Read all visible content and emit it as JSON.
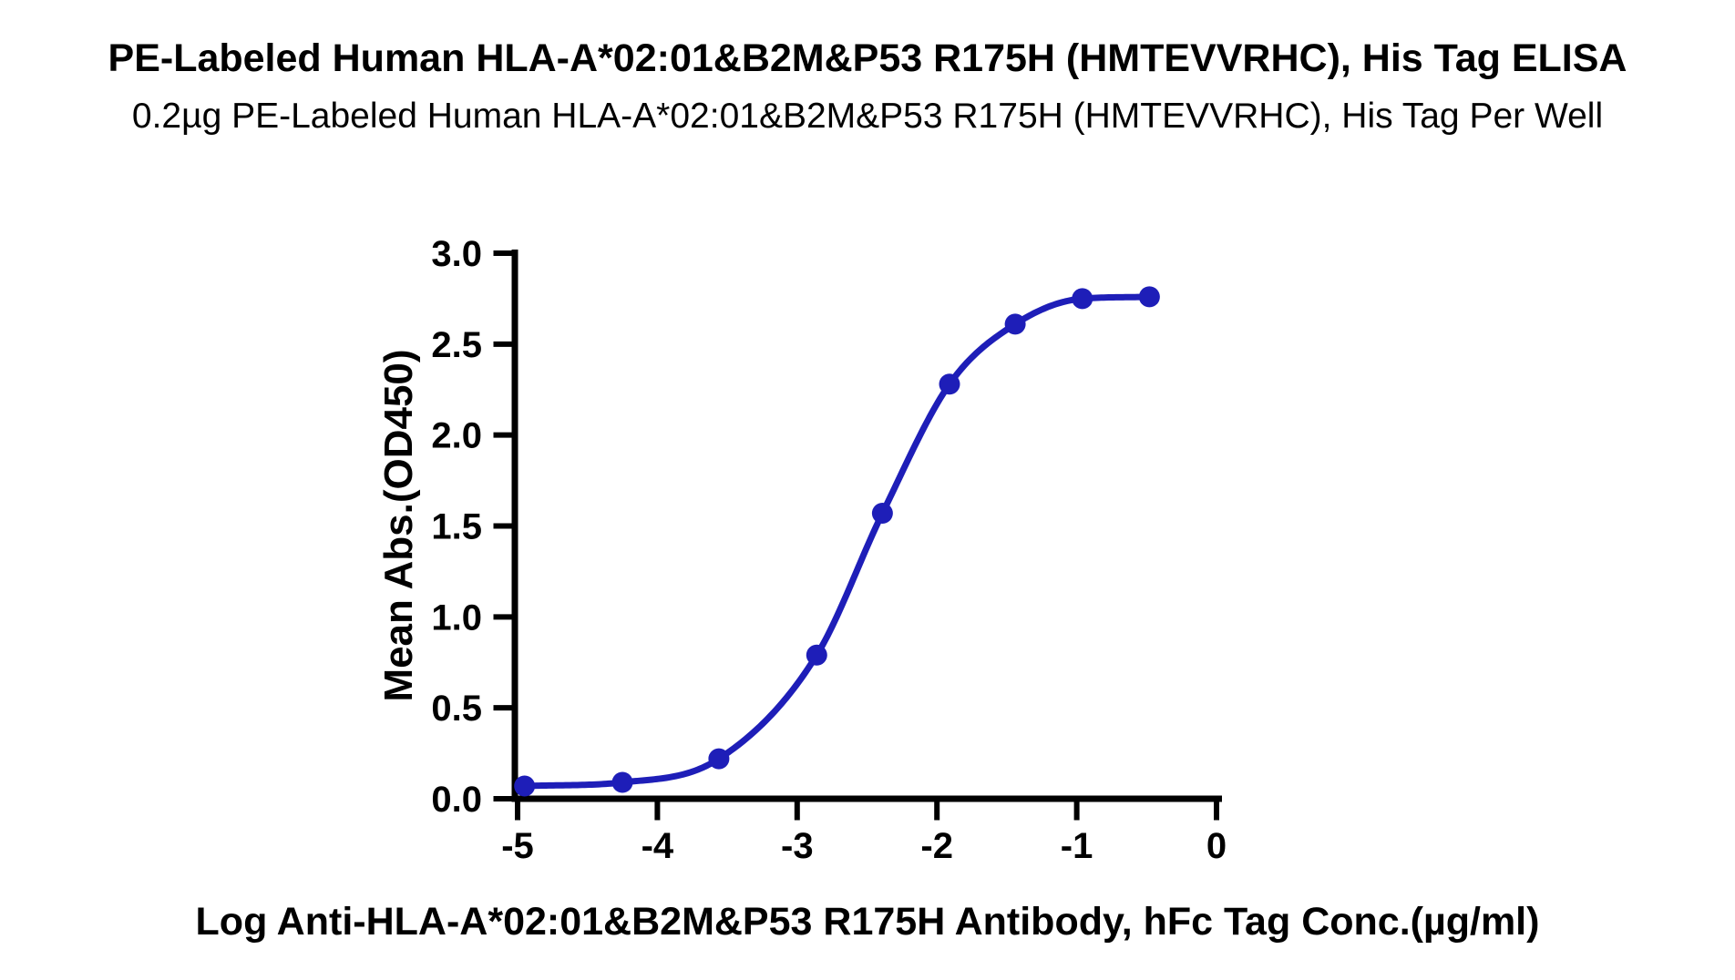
{
  "chart_data": {
    "type": "line",
    "title": "PE-Labeled Human HLA-A*02:01&B2M&P53 R175H (HMTEVVRHC), His Tag ELISA",
    "subtitle": "0.2µg PE-Labeled Human HLA-A*02:01&B2M&P53 R175H (HMTEVVRHC), His Tag Per Well",
    "xlabel": "Log Anti-HLA-A*02:01&B2M&P53 R175H Antibody, hFc Tag Conc.(µg/ml)",
    "ylabel": "Mean Abs.(OD450)",
    "x": [
      -4.95,
      -4.25,
      -3.56,
      -2.86,
      -2.39,
      -1.91,
      -1.44,
      -0.96,
      -0.48
    ],
    "y": [
      0.07,
      0.09,
      0.22,
      0.79,
      1.57,
      2.28,
      2.61,
      2.75,
      2.76
    ],
    "xlim": [
      -5,
      0
    ],
    "ylim": [
      0,
      3
    ],
    "xticks": [
      -5,
      -4,
      -3,
      -2,
      -1,
      0
    ],
    "yticks": [
      0,
      0.5,
      1,
      1.5,
      2,
      2.5,
      3
    ],
    "grid": false,
    "legend_position": "none",
    "curve": "sigmoidal dose-response (smooth fit through points)",
    "marker": "filled-circle"
  },
  "colors": {
    "line": "#1e1eb8",
    "marker": "#1e1eb8",
    "axis": "#000000",
    "text": "#000000",
    "background": "#ffffff"
  }
}
